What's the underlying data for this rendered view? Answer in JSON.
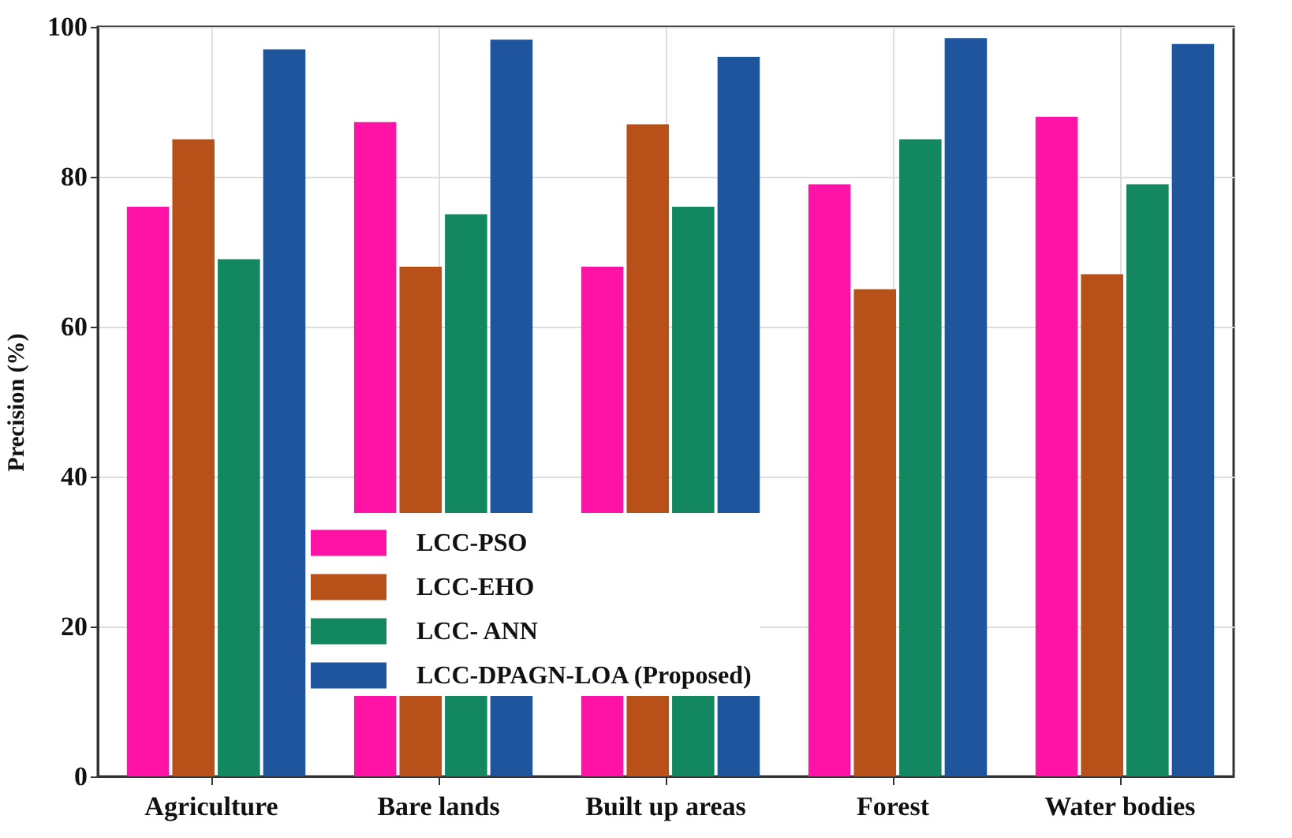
{
  "chart_data": {
    "type": "bar",
    "ylabel": "Precision (%)",
    "categories": [
      "Agriculture",
      "Bare lands",
      "Built up areas",
      "Forest",
      "Water bodies"
    ],
    "series": [
      {
        "name": "LCC-PSO",
        "color": "#ff13a6",
        "values": [
          76,
          87.3,
          68,
          79,
          88
        ]
      },
      {
        "name": "LCC-EHO",
        "color": "#b85019",
        "values": [
          85,
          68,
          87,
          65,
          67
        ]
      },
      {
        "name": "LCC- ANN",
        "color": "#13875f",
        "values": [
          69,
          75,
          76,
          85,
          79
        ]
      },
      {
        "name": "LCC-DPAGN-LOA (Proposed)",
        "color": "#1f559c",
        "values": [
          97,
          98.3,
          96,
          98.5,
          97.7
        ]
      }
    ],
    "ylim": [
      0,
      100
    ],
    "yticks": [
      0,
      20,
      40,
      60,
      80,
      100
    ],
    "grid": true,
    "legend": "bottom"
  }
}
